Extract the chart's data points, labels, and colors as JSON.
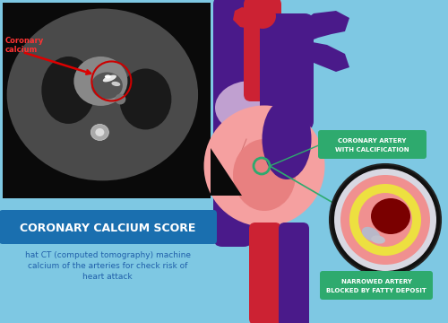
{
  "bg_color": "#7ec8e3",
  "title_text": "CORONARY CALCIUM SCORE",
  "title_bg": "#1a6faf",
  "title_color": "#ffffff",
  "subtitle_line1": "hat CT (computed tomography) machine",
  "subtitle_line2": "calcium of the arteries for check risk of",
  "subtitle_line3": "heart attack",
  "subtitle_color": "#1a6faf",
  "label_coronary": "Coronary\ncalcium",
  "label_coronary_color": "#ffffff",
  "green_label1_l1": "CORONARY ARTERY",
  "green_label1_l2": "WITH CALCIFICATION",
  "green_label2_l1": "NARROWED ARTERY",
  "green_label2_l2": "BLOCKED BY FATTY DEPOSIT",
  "green_bg": "#2eaa6e",
  "green_text_color": "#ffffff",
  "heart_pink": "#f5a0a0",
  "heart_red": "#cc2233",
  "heart_purple": "#4a1a8a",
  "heart_lavender": "#c0a0d0",
  "artery_black": "#111111",
  "artery_gray": "#d8d8e0",
  "artery_pink": "#f08080",
  "artery_yellow": "#f0e040",
  "artery_dark": "#7a0000",
  "artery_silver": "#b8b8c8"
}
